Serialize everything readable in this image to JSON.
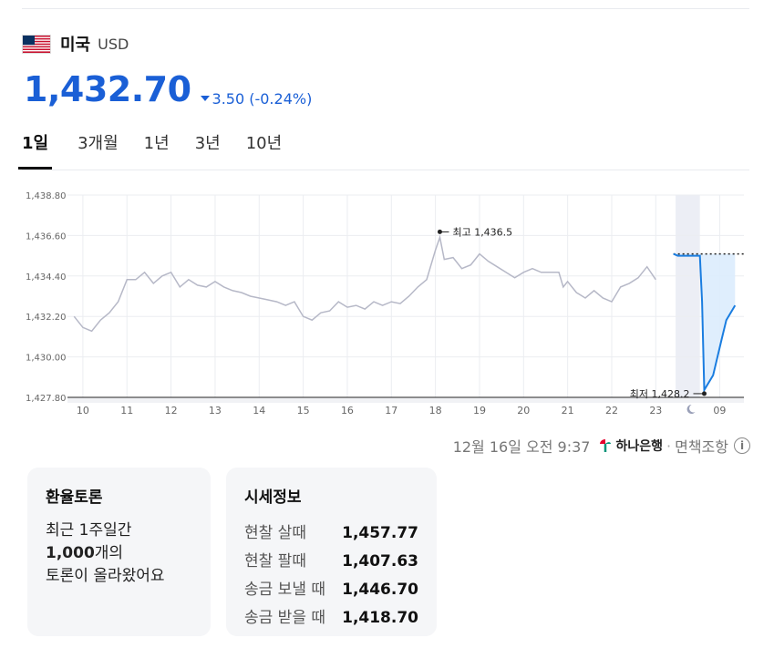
{
  "header": {
    "country": "미국",
    "currency_code": "USD",
    "flag_icon": "us-flag-icon"
  },
  "rate": {
    "value": "1,432.70",
    "change": "3.50 (-0.24%)",
    "direction": "down",
    "color": "#1a5fd6"
  },
  "tabs": [
    {
      "label": "1일",
      "active": true
    },
    {
      "label": "3개월",
      "active": false
    },
    {
      "label": "1년",
      "active": false
    },
    {
      "label": "3년",
      "active": false
    },
    {
      "label": "10년",
      "active": false
    }
  ],
  "chart_data": {
    "type": "line",
    "ylim": [
      1427.8,
      1438.8
    ],
    "y_ticks": [
      "1,438.80",
      "1,436.60",
      "1,434.40",
      "1,432.20",
      "1,430.00",
      "1,427.80"
    ],
    "y_values": [
      1438.8,
      1436.6,
      1434.4,
      1432.2,
      1430.0,
      1427.8
    ],
    "x_ticks": [
      "10",
      "11",
      "12",
      "13",
      "14",
      "15",
      "16",
      "17",
      "18",
      "19",
      "20",
      "21",
      "22",
      "23",
      "09"
    ],
    "night_icon": "moon-icon",
    "series": [
      {
        "points": [
          [
            9.8,
            1432.2
          ],
          [
            10.0,
            1431.6
          ],
          [
            10.2,
            1431.4
          ],
          [
            10.4,
            1432.0
          ],
          [
            10.6,
            1432.4
          ],
          [
            10.8,
            1433.0
          ],
          [
            11.0,
            1434.2
          ],
          [
            11.2,
            1434.2
          ],
          [
            11.4,
            1434.6
          ],
          [
            11.6,
            1434.0
          ],
          [
            11.8,
            1434.4
          ],
          [
            12.0,
            1434.6
          ],
          [
            12.2,
            1433.8
          ],
          [
            12.4,
            1434.2
          ],
          [
            12.6,
            1433.9
          ],
          [
            12.8,
            1433.8
          ],
          [
            13.0,
            1434.1
          ],
          [
            13.2,
            1433.8
          ],
          [
            13.4,
            1433.6
          ],
          [
            13.6,
            1433.5
          ],
          [
            13.8,
            1433.3
          ],
          [
            14.0,
            1433.2
          ],
          [
            14.2,
            1433.1
          ],
          [
            14.4,
            1433.0
          ],
          [
            14.6,
            1432.8
          ],
          [
            14.8,
            1433.0
          ],
          [
            15.0,
            1432.2
          ],
          [
            15.2,
            1432.0
          ],
          [
            15.4,
            1432.4
          ],
          [
            15.6,
            1432.5
          ],
          [
            15.8,
            1433.0
          ],
          [
            16.0,
            1432.7
          ],
          [
            16.2,
            1432.8
          ],
          [
            16.4,
            1432.6
          ],
          [
            16.6,
            1433.0
          ],
          [
            16.8,
            1432.8
          ],
          [
            17.0,
            1433.0
          ],
          [
            17.2,
            1432.9
          ],
          [
            17.4,
            1433.3
          ],
          [
            17.6,
            1433.8
          ],
          [
            17.8,
            1434.2
          ],
          [
            18.0,
            1435.8
          ],
          [
            18.1,
            1436.5
          ],
          [
            18.2,
            1435.3
          ],
          [
            18.4,
            1435.4
          ],
          [
            18.6,
            1434.8
          ],
          [
            18.8,
            1435.0
          ],
          [
            19.0,
            1435.6
          ],
          [
            19.2,
            1435.2
          ],
          [
            19.4,
            1434.9
          ],
          [
            19.6,
            1434.6
          ],
          [
            19.8,
            1434.3
          ],
          [
            20.0,
            1434.6
          ],
          [
            20.2,
            1434.8
          ],
          [
            20.4,
            1434.6
          ],
          [
            20.6,
            1434.6
          ],
          [
            20.8,
            1434.6
          ],
          [
            20.9,
            1433.8
          ],
          [
            21.0,
            1434.1
          ],
          [
            21.2,
            1433.5
          ],
          [
            21.4,
            1433.2
          ],
          [
            21.6,
            1433.6
          ],
          [
            21.8,
            1433.2
          ],
          [
            22.0,
            1433.0
          ],
          [
            22.2,
            1433.8
          ],
          [
            22.4,
            1434.0
          ],
          [
            22.6,
            1434.3
          ],
          [
            22.8,
            1434.9
          ],
          [
            23.0,
            1434.2
          ]
        ]
      },
      {
        "points": [
          [
            23.4,
            1435.6
          ],
          [
            23.5,
            1435.5
          ],
          [
            24.0,
            1435.5
          ],
          [
            24.05,
            1433.0
          ],
          [
            24.1,
            1428.2
          ],
          [
            24.3,
            1429.0
          ],
          [
            24.5,
            1431.0
          ],
          [
            24.6,
            1432.0
          ],
          [
            24.8,
            1432.8
          ]
        ]
      }
    ],
    "annotations": [
      {
        "label": "최고 1,436.5",
        "x": 18.1,
        "y": 1436.5
      },
      {
        "label": "최저 1,428.2",
        "x": 24.1,
        "y": 1428.2
      }
    ],
    "colors": {
      "past": "#b6b8c7",
      "today": "#1a7de0",
      "fill": "#dcecfd",
      "grid": "#ebedf1"
    }
  },
  "footer": {
    "timestamp": "12월 16일 오전 9:37",
    "bank": "하나은행",
    "disclaimer": "면책조항",
    "bank_icon": "hana-bank-icon",
    "info_icon": "info-icon"
  },
  "card_discussion": {
    "title": "환율토론",
    "line1": "최근 1주일간",
    "count": "1,000",
    "line2_suffix": "개의",
    "line3": "토론이 올라왔어요"
  },
  "card_market": {
    "title": "시세정보",
    "rows": [
      {
        "label": "현찰 살때",
        "value": "1,457.77"
      },
      {
        "label": "현찰 팔때",
        "value": "1,407.63"
      },
      {
        "label": "송금 보낼 때",
        "value": "1,446.70"
      },
      {
        "label": "송금 받을 때",
        "value": "1,418.70"
      }
    ]
  }
}
